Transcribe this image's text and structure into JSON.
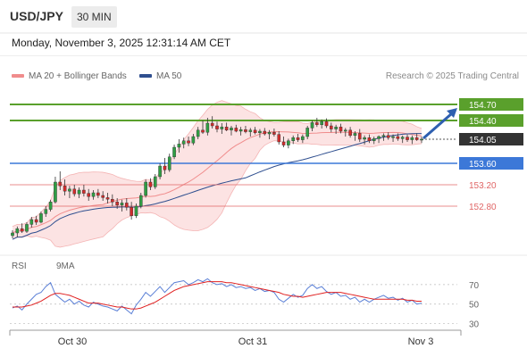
{
  "header": {
    "symbol": "USD/JPY",
    "timeframe": "30 MIN",
    "datetime": "Monday, November 3, 2025 12:31:14 AM CET"
  },
  "legend": {
    "ma20_label": "MA 20 + Bollinger Bands",
    "ma20_color": "#f08c8c",
    "ma50_label": "MA 50",
    "ma50_color": "#2f4f8f",
    "credit": "Research © 2025 Trading Central"
  },
  "rsi_legend": {
    "rsi_label": "RSI",
    "rsi_color": "#5a7fd6",
    "ma_label": "9MA",
    "ma_color": "#e02020"
  },
  "chart_data": [
    {
      "type": "candlestick",
      "title": "USD/JPY 30 MIN",
      "x_ticks": [
        "Oct 30",
        "Oct 31",
        "Nov 3"
      ],
      "ylim": [
        152.05,
        155.05
      ],
      "last_price": 154.05,
      "levels": [
        {
          "label": "154.70",
          "value": 154.7,
          "kind": "resistance",
          "color": "#5aa02c"
        },
        {
          "label": "154.40",
          "value": 154.4,
          "kind": "resistance",
          "color": "#5aa02c"
        },
        {
          "label": "154.05",
          "value": 154.05,
          "kind": "last",
          "color": "#333333"
        },
        {
          "label": "153.60",
          "value": 153.6,
          "kind": "pivot",
          "color": "#3c78d8"
        },
        {
          "label": "153.20",
          "value": 153.2,
          "kind": "support",
          "color": "#e06666"
        },
        {
          "label": "152.80",
          "value": 152.8,
          "kind": "support",
          "color": "#e06666"
        }
      ],
      "forecast": {
        "direction": "up",
        "target": 154.7,
        "color": "#2e5fb0"
      },
      "candles": [
        [
          152.25,
          152.35,
          152.2,
          152.3
        ],
        [
          152.3,
          152.42,
          152.22,
          152.38
        ],
        [
          152.38,
          152.48,
          152.3,
          152.33
        ],
        [
          152.33,
          152.5,
          152.3,
          152.46
        ],
        [
          152.46,
          152.6,
          152.4,
          152.55
        ],
        [
          152.55,
          152.62,
          152.45,
          152.5
        ],
        [
          152.5,
          152.7,
          152.48,
          152.66
        ],
        [
          152.66,
          152.8,
          152.6,
          152.74
        ],
        [
          152.74,
          152.92,
          152.7,
          152.88
        ],
        [
          152.88,
          153.35,
          152.85,
          153.25
        ],
        [
          153.25,
          153.45,
          153.1,
          153.18
        ],
        [
          153.18,
          153.3,
          153.0,
          153.08
        ],
        [
          153.08,
          153.18,
          152.95,
          153.12
        ],
        [
          153.12,
          153.2,
          152.98,
          153.03
        ],
        [
          153.03,
          153.15,
          152.95,
          153.1
        ],
        [
          153.1,
          153.2,
          152.98,
          153.04
        ],
        [
          153.04,
          153.12,
          152.9,
          152.98
        ],
        [
          152.98,
          153.1,
          152.92,
          153.05
        ],
        [
          153.05,
          153.12,
          152.95,
          153.0
        ],
        [
          153.0,
          153.08,
          152.9,
          152.96
        ],
        [
          152.96,
          153.05,
          152.85,
          152.93
        ],
        [
          152.93,
          153.02,
          152.8,
          152.88
        ],
        [
          152.88,
          152.95,
          152.75,
          152.82
        ],
        [
          152.82,
          152.92,
          152.7,
          152.86
        ],
        [
          152.86,
          152.95,
          152.72,
          152.78
        ],
        [
          152.78,
          152.88,
          152.55,
          152.62
        ],
        [
          152.62,
          152.85,
          152.58,
          152.8
        ],
        [
          152.8,
          153.05,
          152.76,
          153.0
        ],
        [
          153.0,
          153.3,
          152.96,
          153.25
        ],
        [
          153.25,
          153.32,
          153.1,
          153.16
        ],
        [
          153.16,
          153.4,
          153.12,
          153.35
        ],
        [
          153.35,
          153.6,
          153.3,
          153.55
        ],
        [
          153.55,
          153.7,
          153.4,
          153.48
        ],
        [
          153.48,
          153.78,
          153.44,
          153.72
        ],
        [
          153.72,
          153.95,
          153.68,
          153.9
        ],
        [
          153.9,
          154.05,
          153.8,
          153.96
        ],
        [
          153.96,
          154.08,
          153.88,
          154.02
        ],
        [
          154.02,
          154.1,
          153.92,
          153.98
        ],
        [
          153.98,
          154.15,
          153.94,
          154.1
        ],
        [
          154.1,
          154.28,
          154.05,
          154.22
        ],
        [
          154.22,
          154.4,
          154.15,
          154.18
        ],
        [
          154.18,
          154.45,
          154.12,
          154.35
        ],
        [
          154.35,
          154.48,
          154.25,
          154.3
        ],
        [
          154.3,
          154.38,
          154.18,
          154.24
        ],
        [
          154.24,
          154.35,
          154.15,
          154.28
        ],
        [
          154.28,
          154.36,
          154.2,
          154.22
        ],
        [
          154.22,
          154.3,
          154.12,
          154.26
        ],
        [
          154.26,
          154.32,
          154.18,
          154.2
        ],
        [
          154.2,
          154.28,
          154.12,
          154.23
        ],
        [
          154.23,
          154.3,
          154.16,
          154.19
        ],
        [
          154.19,
          154.26,
          154.1,
          154.22
        ],
        [
          154.22,
          154.28,
          154.14,
          154.17
        ],
        [
          154.17,
          154.24,
          154.08,
          154.2
        ],
        [
          154.2,
          154.26,
          154.12,
          154.15
        ],
        [
          154.15,
          154.22,
          154.05,
          154.18
        ],
        [
          154.18,
          154.25,
          154.1,
          154.14
        ],
        [
          154.14,
          154.2,
          153.95,
          154.0
        ],
        [
          154.0,
          154.1,
          153.9,
          153.94
        ],
        [
          153.94,
          154.06,
          153.88,
          154.02
        ],
        [
          154.02,
          154.12,
          153.96,
          154.08
        ],
        [
          154.08,
          154.15,
          154.0,
          154.04
        ],
        [
          154.04,
          154.14,
          153.98,
          154.1
        ],
        [
          154.1,
          154.3,
          154.05,
          154.26
        ],
        [
          154.26,
          154.4,
          154.2,
          154.36
        ],
        [
          154.36,
          154.45,
          154.28,
          154.32
        ],
        [
          154.32,
          154.42,
          154.25,
          154.38
        ],
        [
          154.38,
          154.44,
          154.26,
          154.3
        ],
        [
          154.3,
          154.36,
          154.18,
          154.24
        ],
        [
          154.24,
          154.32,
          154.15,
          154.28
        ],
        [
          154.28,
          154.34,
          154.16,
          154.2
        ],
        [
          154.2,
          154.26,
          154.1,
          154.22
        ],
        [
          154.22,
          154.28,
          154.08,
          154.12
        ],
        [
          154.12,
          154.2,
          154.02,
          154.16
        ],
        [
          154.16,
          154.24,
          154.0,
          154.05
        ],
        [
          154.05,
          154.12,
          153.95,
          154.08
        ],
        [
          154.08,
          154.14,
          153.98,
          154.02
        ],
        [
          154.02,
          154.1,
          153.96,
          154.06
        ],
        [
          154.06,
          154.12,
          153.98,
          154.1
        ],
        [
          154.1,
          154.16,
          154.02,
          154.12
        ],
        [
          154.12,
          154.18,
          154.04,
          154.08
        ],
        [
          154.08,
          154.14,
          154.0,
          154.1
        ],
        [
          154.1,
          154.16,
          154.02,
          154.06
        ],
        [
          154.06,
          154.12,
          153.98,
          154.09
        ],
        [
          154.09,
          154.14,
          154.0,
          154.04
        ],
        [
          154.04,
          154.12,
          153.96,
          154.08
        ],
        [
          154.08,
          154.16,
          154.02,
          154.04
        ],
        [
          154.04,
          154.1,
          153.98,
          154.05
        ]
      ]
    },
    {
      "type": "line",
      "title": "RSI",
      "y_ticks": [
        70,
        50,
        30
      ],
      "ylim": [
        25,
        80
      ],
      "series": [
        {
          "name": "RSI",
          "color": "#5a7fd6",
          "values": [
            46,
            48,
            44,
            50,
            55,
            60,
            62,
            68,
            72,
            60,
            56,
            52,
            55,
            50,
            53,
            49,
            47,
            52,
            50,
            48,
            47,
            45,
            43,
            48,
            44,
            40,
            49,
            55,
            62,
            58,
            63,
            68,
            62,
            67,
            72,
            73,
            74,
            70,
            72,
            75,
            73,
            76,
            72,
            70,
            71,
            68,
            70,
            67,
            68,
            66,
            67,
            64,
            66,
            63,
            64,
            62,
            55,
            52,
            56,
            60,
            57,
            59,
            66,
            70,
            66,
            68,
            63,
            60,
            62,
            58,
            59,
            55,
            57,
            52,
            55,
            52,
            55,
            57,
            59,
            56,
            57,
            54,
            56,
            52,
            54,
            50,
            51
          ]
        },
        {
          "name": "9MA",
          "color": "#e02020",
          "values": [
            47,
            47,
            47,
            48,
            49,
            51,
            53,
            56,
            59,
            61,
            61,
            60,
            59,
            57,
            55,
            53,
            51,
            51,
            51,
            50,
            49,
            48,
            47,
            47,
            46,
            45,
            45,
            46,
            48,
            50,
            52,
            55,
            58,
            61,
            64,
            66,
            68,
            69,
            70,
            71,
            72,
            73,
            73,
            73,
            73,
            72,
            72,
            71,
            70,
            69,
            68,
            67,
            66,
            65,
            64,
            63,
            62,
            60,
            59,
            58,
            58,
            57,
            58,
            59,
            60,
            61,
            62,
            62,
            62,
            62,
            61,
            60,
            59,
            58,
            57,
            56,
            55,
            55,
            55,
            55,
            55,
            55,
            55,
            54,
            54,
            53,
            53
          ]
        }
      ]
    }
  ]
}
